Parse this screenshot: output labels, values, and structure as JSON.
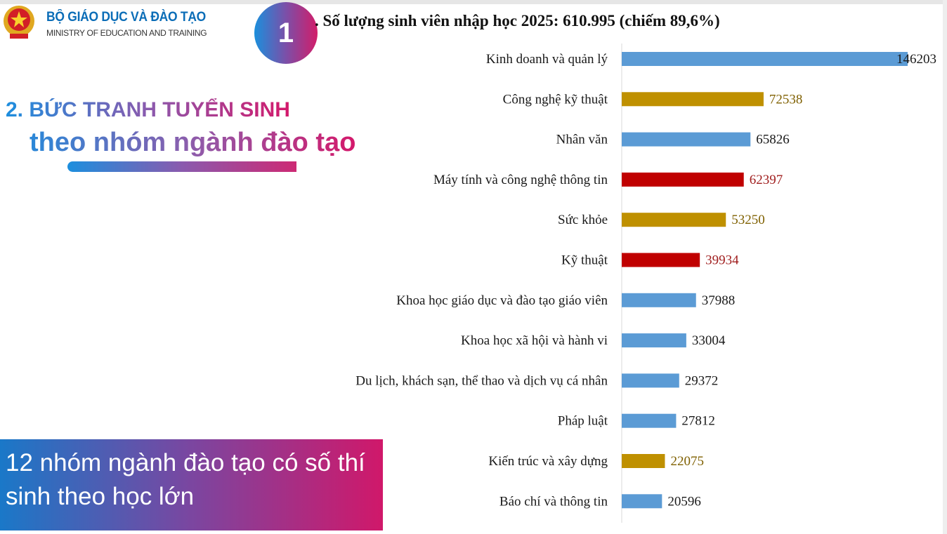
{
  "header": {
    "org_name": "BỘ GIÁO DỤC VÀ ĐÀO TẠO",
    "org_name_en": "MINISTRY OF EDUCATION AND TRAINING",
    "badge_number": "1"
  },
  "section": {
    "title_line1": "2. BỨC TRANH TUYỂN SINH",
    "title_line2": "theo nhóm ngành đào tạo"
  },
  "note": "12 nhóm ngành đào tạo có số thí sinh theo học lớn",
  "colors": {
    "blue": "#5b9bd5",
    "gold": "#bf9000",
    "red": "#c00000"
  },
  "chart_data": {
    "type": "bar",
    "orientation": "horizontal",
    "title": ". Số lượng sinh viên nhập học 2025: 610.995 (chiếm 89,6%)",
    "categories": [
      "Kinh doanh và quản lý",
      "Công nghệ kỹ thuật",
      "Nhân văn",
      "Máy tính và công nghệ thông tin",
      "Sức khỏe",
      "Kỹ thuật",
      "Khoa học giáo dục và đào tạo giáo viên",
      "Khoa học xã hội và hành vi",
      "Du lịch, khách sạn, thể thao và dịch vụ cá nhân",
      "Pháp luật",
      "Kiến trúc và xây dựng",
      "Báo chí và thông tin"
    ],
    "values": [
      146203,
      72538,
      65826,
      62397,
      53250,
      39934,
      37988,
      33004,
      29372,
      27812,
      22075,
      20596
    ],
    "bar_colors": [
      "blue",
      "gold",
      "blue",
      "red",
      "gold",
      "red",
      "blue",
      "blue",
      "blue",
      "blue",
      "gold",
      "blue"
    ],
    "data_labels": true,
    "grid": false
  }
}
